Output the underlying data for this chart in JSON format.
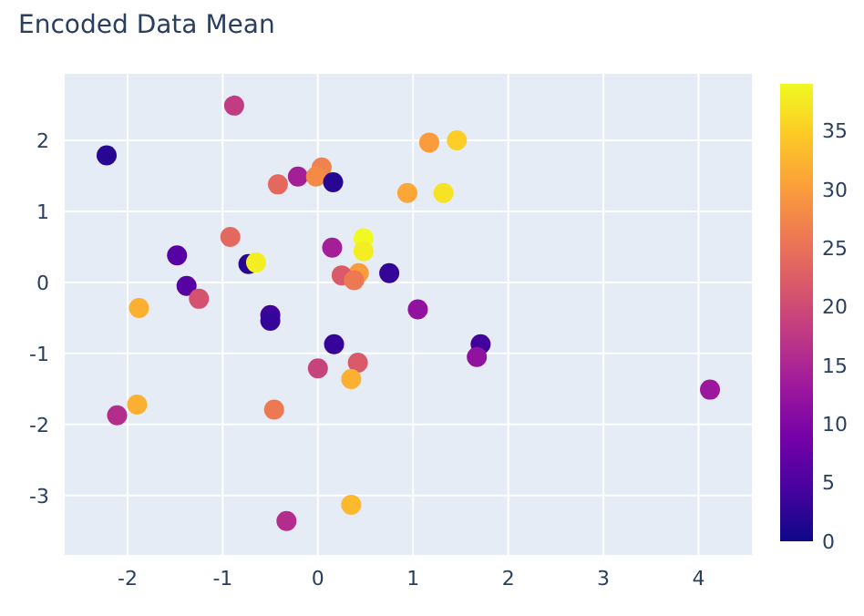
{
  "chart_data": {
    "type": "scatter",
    "title": "Encoded Data Mean",
    "x": [
      -2.22,
      -0.88,
      -0.42,
      -0.21,
      0.04,
      -0.02,
      0.16,
      0.94,
      1.17,
      1.46,
      1.32,
      -0.92,
      -1.48,
      -0.73,
      -0.65,
      0.15,
      0.48,
      0.48,
      0.43,
      0.25,
      0.38,
      0.75,
      -1.38,
      -1.25,
      -1.88,
      -0.5,
      -0.5,
      1.05,
      0.17,
      0.0,
      0.42,
      0.35,
      1.71,
      1.67,
      4.12,
      -1.9,
      -2.11,
      -0.46,
      0.35,
      -0.33
    ],
    "values": [
      1.79,
      2.49,
      1.38,
      1.49,
      1.62,
      1.49,
      1.41,
      1.26,
      1.97,
      2.0,
      1.26,
      0.64,
      0.38,
      0.26,
      0.28,
      0.49,
      0.62,
      0.44,
      0.13,
      0.1,
      0.03,
      0.13,
      -0.05,
      -0.23,
      -0.36,
      -0.46,
      -0.54,
      -0.38,
      -0.87,
      -1.21,
      -1.13,
      -1.36,
      -0.87,
      -1.05,
      -1.51,
      -1.72,
      -1.87,
      -1.79,
      -3.13,
      -3.36
    ],
    "cvalues": [
      2,
      18,
      24,
      14,
      27,
      28,
      2,
      31,
      30,
      35,
      37,
      24,
      6,
      2,
      38,
      14,
      39,
      38,
      30,
      22,
      26,
      3,
      6,
      21,
      32,
      4,
      3,
      12,
      3,
      19,
      22,
      32,
      4,
      12,
      13,
      32,
      16,
      26,
      33,
      16
    ],
    "clim": [
      0,
      39
    ],
    "cticks": [
      0,
      5,
      10,
      15,
      20,
      25,
      30,
      35
    ],
    "xlim": [
      -2.67,
      4.57
    ],
    "xticks": [
      -2,
      -1,
      0,
      1,
      2,
      3,
      4
    ],
    "ylim": [
      -3.85,
      2.95
    ],
    "yticks": [
      -3,
      -2,
      -1,
      0,
      1,
      2
    ],
    "marker": "circle",
    "grid": true
  }
}
